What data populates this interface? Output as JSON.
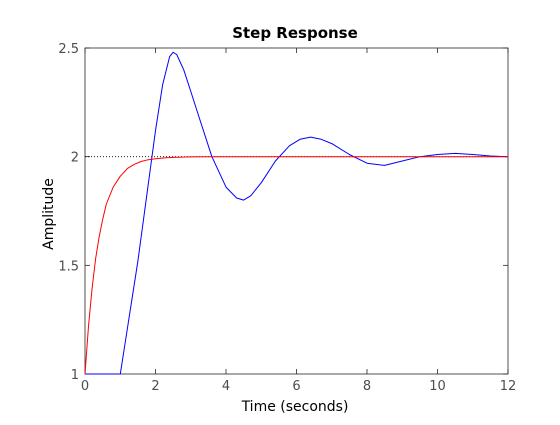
{
  "chart_data": {
    "type": "line",
    "title": "Step Response",
    "xlabel": "Time (seconds)",
    "ylabel": "Amplitude",
    "xlim": [
      0,
      12
    ],
    "ylim": [
      1,
      2.5
    ],
    "xticks": [
      0,
      2,
      4,
      6,
      8,
      10,
      12
    ],
    "yticks": [
      1,
      1.5,
      2,
      2.5
    ],
    "xtick_labels": [
      "0",
      "2",
      "4",
      "6",
      "8",
      "10",
      "12"
    ],
    "ytick_labels": [
      "1",
      "1.5",
      "2",
      "2.5"
    ],
    "grid": false,
    "reference_line": {
      "y": 2,
      "style": "dotted",
      "color": "#000000"
    },
    "series": [
      {
        "color": "#0000ff",
        "x": [
          0,
          1.0,
          1.5,
          2.0,
          2.2,
          2.4,
          2.5,
          2.6,
          2.8,
          3.0,
          3.3,
          3.6,
          4.0,
          4.3,
          4.5,
          4.7,
          5.0,
          5.4,
          5.8,
          6.1,
          6.4,
          6.7,
          7.0,
          7.5,
          8.0,
          8.5,
          9.0,
          9.5,
          10.0,
          10.5,
          11.0,
          11.5,
          12.0
        ],
        "y": [
          1.0,
          1.0,
          1.52,
          2.12,
          2.33,
          2.46,
          2.48,
          2.47,
          2.4,
          2.3,
          2.15,
          2.0,
          1.86,
          1.81,
          1.8,
          1.82,
          1.88,
          1.98,
          2.05,
          2.08,
          2.09,
          2.08,
          2.06,
          2.01,
          1.97,
          1.96,
          1.98,
          2.0,
          2.01,
          2.015,
          2.01,
          2.003,
          2.0
        ]
      },
      {
        "color": "#ff0000",
        "x": [
          0,
          0.1,
          0.2,
          0.3,
          0.4,
          0.5,
          0.6,
          0.8,
          1.0,
          1.2,
          1.4,
          1.6,
          1.8,
          2.0,
          2.3,
          2.6,
          3.0,
          3.5,
          4.0,
          5.0,
          6.0,
          8.0,
          10.0,
          12.0
        ],
        "y": [
          1.0,
          1.22,
          1.39,
          1.53,
          1.63,
          1.71,
          1.78,
          1.86,
          1.91,
          1.945,
          1.965,
          1.978,
          1.986,
          1.99,
          1.995,
          1.997,
          1.999,
          2.0,
          2.0,
          2.0,
          2.0,
          2.0,
          2.0,
          2.0
        ]
      }
    ]
  }
}
